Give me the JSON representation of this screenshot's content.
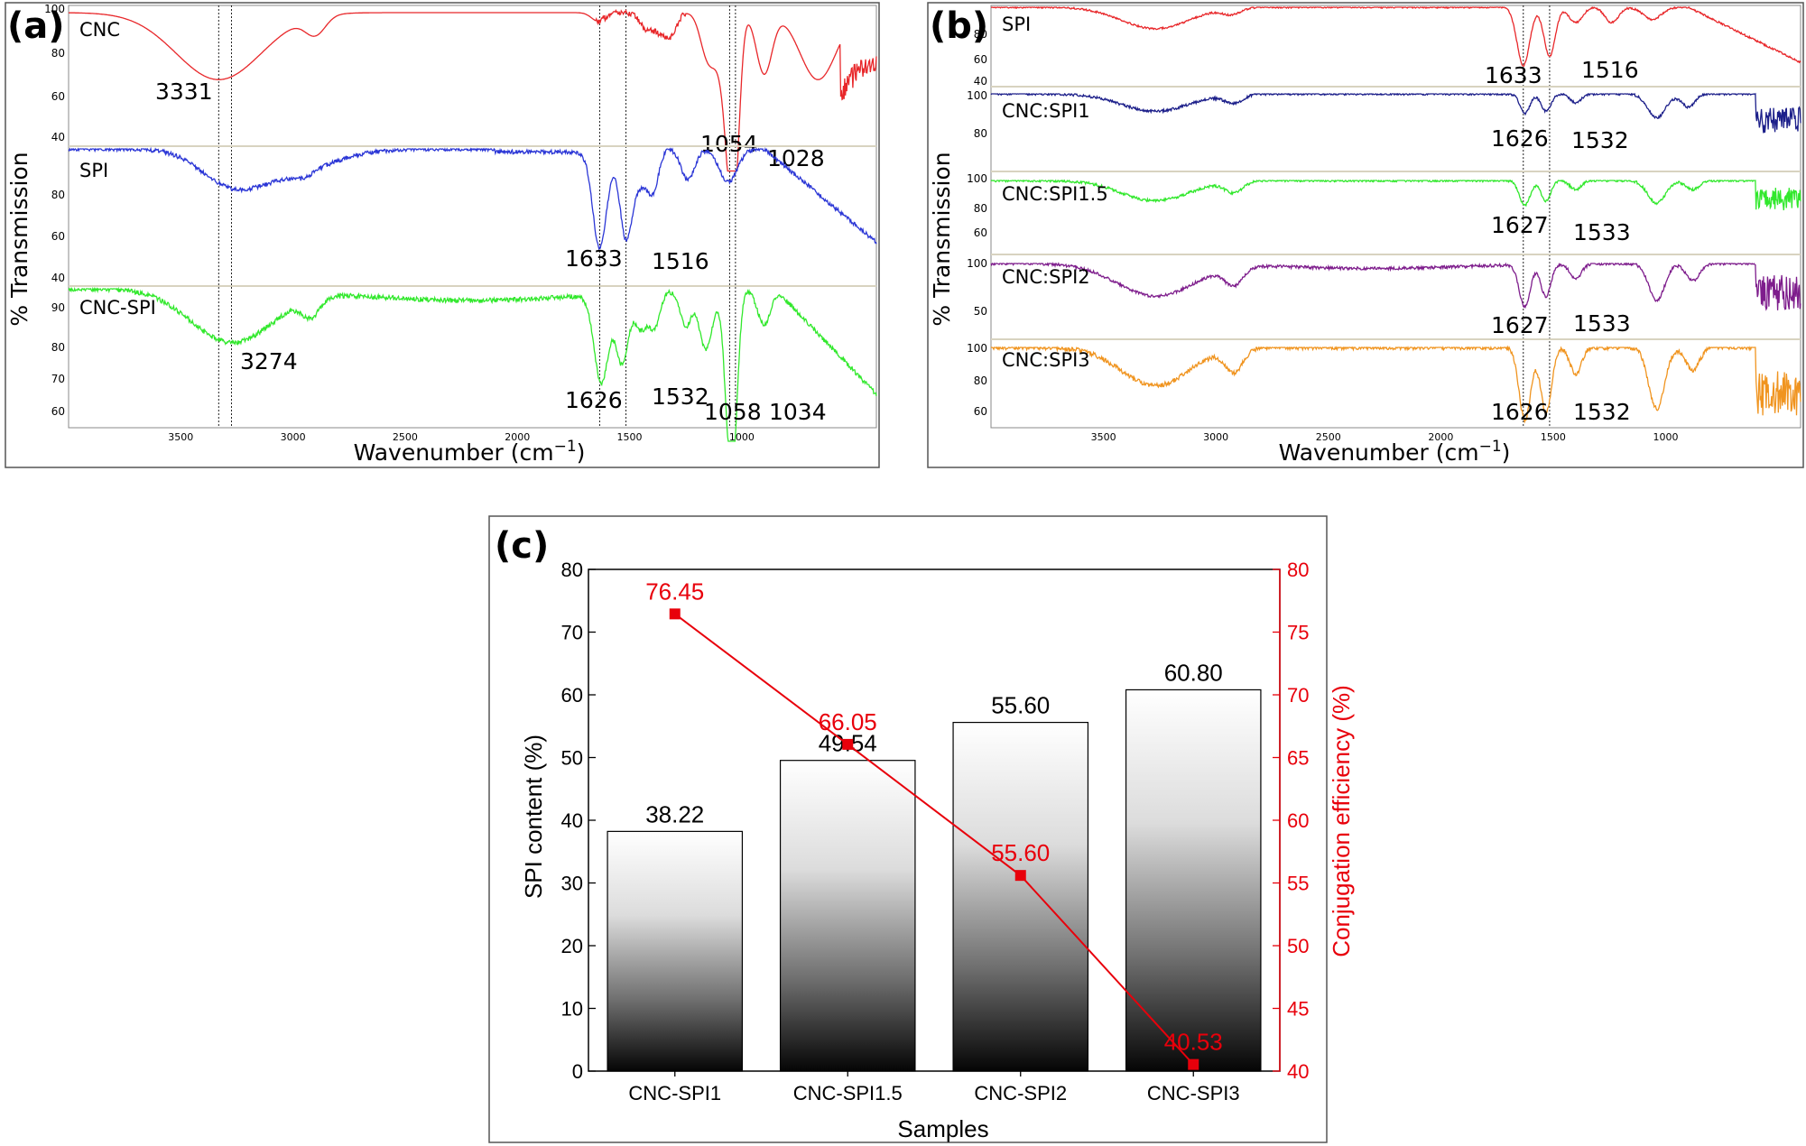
{
  "chart_data": [
    {
      "panel": "(a)",
      "type": "line",
      "xlabel": "Wavenumber (cm",
      "xlabel_sup": "−1",
      "xlabel_close": ")",
      "ylabel": "% Transmission",
      "x_ticks": [
        3500,
        3000,
        2500,
        2000,
        1500,
        1000
      ],
      "xlim": [
        4000,
        400
      ],
      "guide_lines": [
        3331,
        3274,
        1633,
        1516,
        1054,
        1028
      ],
      "series": [
        {
          "name": "CNC",
          "color": "#e8272a",
          "y_ticks": [
            100,
            80,
            60,
            40
          ],
          "peaks": [
            {
              "label": "3331",
              "x": 3331
            },
            {
              "label": "1054",
              "x": 1054
            },
            {
              "label": "1028",
              "x": 1028
            }
          ]
        },
        {
          "name": "SPI",
          "color": "#2b36d6",
          "y_ticks": [
            80,
            60,
            40
          ],
          "peaks": [
            {
              "label": "1633",
              "x": 1633
            },
            {
              "label": "1516",
              "x": 1516
            }
          ]
        },
        {
          "name": "CNC-SPI",
          "color": "#31e82c",
          "y_ticks": [
            90,
            80,
            70,
            60
          ],
          "peaks": [
            {
              "label": "3274",
              "x": 3274
            },
            {
              "label": "1626",
              "x": 1626
            },
            {
              "label": "1532",
              "x": 1532
            },
            {
              "label": "1058",
              "x": 1058
            },
            {
              "label": "1034",
              "x": 1034
            }
          ]
        }
      ]
    },
    {
      "panel": "(b)",
      "type": "line",
      "xlabel": "Wavenumber (cm",
      "xlabel_sup": "−1",
      "xlabel_close": ")",
      "ylabel": "% Transmission",
      "x_ticks": [
        3500,
        3000,
        2500,
        2000,
        1500,
        1000
      ],
      "xlim": [
        4000,
        400
      ],
      "guide_lines": [
        1633,
        1516
      ],
      "series": [
        {
          "name": "SPI",
          "color": "#e8272a",
          "y_ticks": [
            80,
            60,
            40
          ],
          "peaks": [
            {
              "label": "1633",
              "x": 1633
            },
            {
              "label": "1516",
              "x": 1516
            }
          ]
        },
        {
          "name": "CNC:SPI1",
          "color": "#1c1f8a",
          "y_ticks": [
            100,
            80
          ],
          "peaks": [
            {
              "label": "1626",
              "x": 1626
            },
            {
              "label": "1532",
              "x": 1532
            }
          ]
        },
        {
          "name": "CNC:SPI1.5",
          "color": "#31e82c",
          "y_ticks": [
            100,
            80,
            60
          ],
          "peaks": [
            {
              "label": "1627",
              "x": 1627
            },
            {
              "label": "1533",
              "x": 1533
            }
          ]
        },
        {
          "name": "CNC:SPI2",
          "color": "#7e1d8c",
          "y_ticks": [
            100,
            50
          ],
          "peaks": [
            {
              "label": "1627",
              "x": 1627
            },
            {
              "label": "1533",
              "x": 1533
            }
          ]
        },
        {
          "name": "CNC:SPI3",
          "color": "#f0941f",
          "y_ticks": [
            100,
            80,
            60
          ],
          "peaks": [
            {
              "label": "1626",
              "x": 1626
            },
            {
              "label": "1532",
              "x": 1532
            }
          ]
        }
      ]
    },
    {
      "panel": "(c)",
      "type": "bar",
      "xlabel": "Samples",
      "ylabel": "SPI content (%)",
      "ylabel_right": "Conjugation efficiency (%)",
      "categories": [
        "CNC-SPI1",
        "CNC-SPI1.5",
        "CNC-SPI2",
        "CNC-SPI3"
      ],
      "series": [
        {
          "name": "SPI content (%)",
          "values": [
            38.22,
            49.54,
            55.6,
            60.8
          ],
          "labels": [
            "38.22",
            "49.54",
            "55.60",
            "60.80"
          ]
        },
        {
          "name": "Conjugation efficiency (%)",
          "axis": "right",
          "kind": "line",
          "values": [
            76.45,
            66.05,
            55.6,
            40.53
          ],
          "labels": [
            "76.45",
            "66.05",
            "55.60",
            "40.53"
          ]
        }
      ],
      "ylim": [
        0,
        80
      ],
      "y_ticks": [
        0,
        10,
        20,
        30,
        40,
        50,
        60,
        70,
        80
      ],
      "ylim_right": [
        40,
        80
      ],
      "y_ticks_right": [
        40,
        45,
        50,
        55,
        60,
        65,
        70,
        75,
        80
      ],
      "right_color": "#e8000b"
    }
  ]
}
